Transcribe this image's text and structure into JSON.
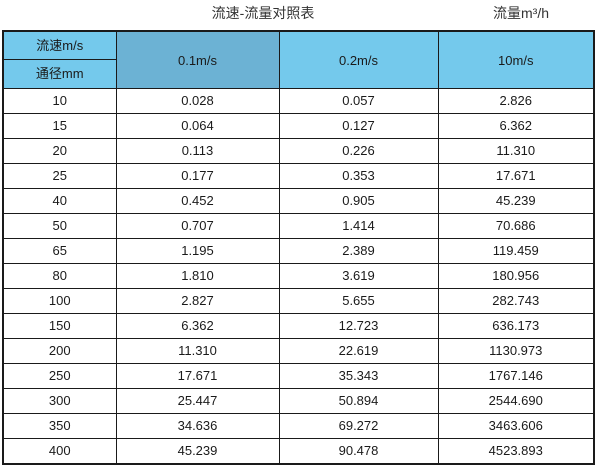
{
  "page": {
    "title_left": "流速-流量对照表",
    "title_right": "流量m³/h"
  },
  "colors": {
    "header_cyan": "#74c9ec",
    "header_selected_blue": "#6cb2d4",
    "selected_column_gray": "#dbdbdb",
    "border": "#1a1a1a",
    "text": "#1a1a1a",
    "background": "#ffffff"
  },
  "chart_data": {
    "type": "table",
    "title": "流速-流量对照表",
    "unit_label": "流量m³/h",
    "corner": {
      "top_label": "流速m/s",
      "bottom_label": "通径mm"
    },
    "columns": [
      "0.1m/s",
      "0.2m/s",
      "10m/s"
    ],
    "row_header_unit": "mm",
    "rows": [
      {
        "dn": "10",
        "values": [
          "0.028",
          "0.057",
          "2.826"
        ]
      },
      {
        "dn": "15",
        "values": [
          "0.064",
          "0.127",
          "6.362"
        ]
      },
      {
        "dn": "20",
        "values": [
          "0.113",
          "0.226",
          "11.310"
        ]
      },
      {
        "dn": "25",
        "values": [
          "0.177",
          "0.353",
          "17.671"
        ]
      },
      {
        "dn": "40",
        "values": [
          "0.452",
          "0.905",
          "45.239"
        ]
      },
      {
        "dn": "50",
        "values": [
          "0.707",
          "1.414",
          "70.686"
        ]
      },
      {
        "dn": "65",
        "values": [
          "1.195",
          "2.389",
          "119.459"
        ]
      },
      {
        "dn": "80",
        "values": [
          "1.810",
          "3.619",
          "180.956"
        ]
      },
      {
        "dn": "100",
        "values": [
          "2.827",
          "5.655",
          "282.743"
        ]
      },
      {
        "dn": "150",
        "values": [
          "6.362",
          "12.723",
          "636.173"
        ]
      },
      {
        "dn": "200",
        "values": [
          "11.310",
          "22.619",
          "1130.973"
        ]
      },
      {
        "dn": "250",
        "values": [
          "17.671",
          "35.343",
          "1767.146"
        ]
      },
      {
        "dn": "300",
        "values": [
          "25.447",
          "50.894",
          "2544.690"
        ]
      },
      {
        "dn": "350",
        "values": [
          "34.636",
          "69.272",
          "3463.606"
        ]
      },
      {
        "dn": "400",
        "values": [
          "45.239",
          "90.478",
          "4523.893"
        ]
      }
    ]
  }
}
